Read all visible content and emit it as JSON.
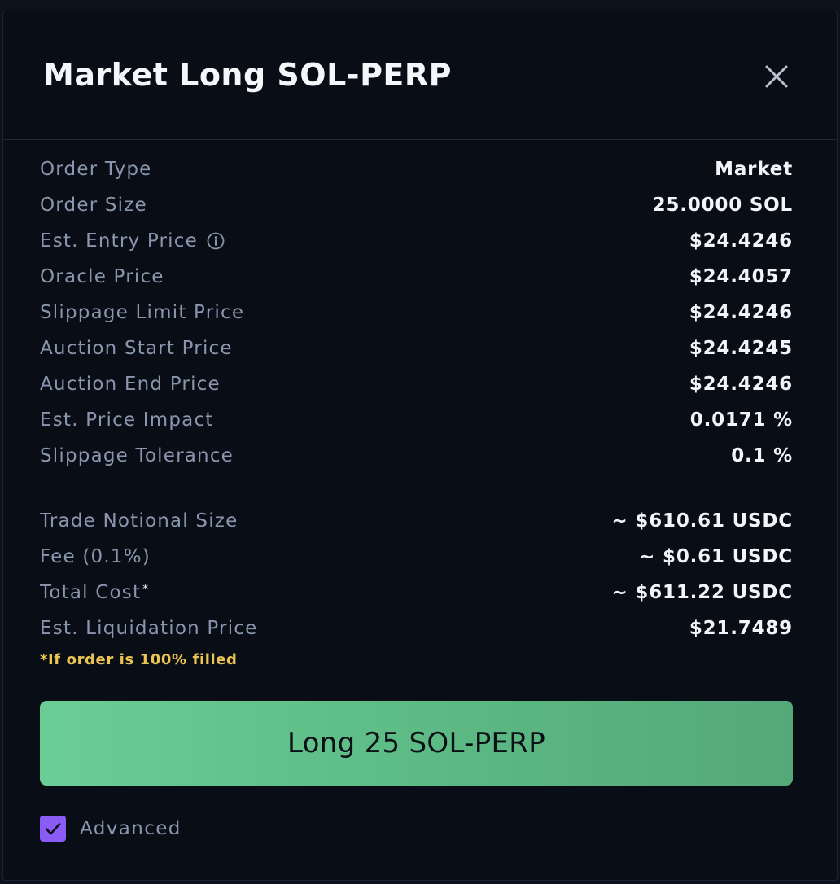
{
  "modal": {
    "title": "Market Long SOL-PERP",
    "close_icon": "close-icon"
  },
  "order_details": [
    {
      "label": "Order Type",
      "value": "Market"
    },
    {
      "label": "Order Size",
      "value": "25.0000 SOL"
    },
    {
      "label": "Est. Entry Price",
      "value": "$24.4246",
      "icon": "info-icon"
    },
    {
      "label": "Oracle Price",
      "value": "$24.4057"
    },
    {
      "label": "Slippage Limit Price",
      "value": "$24.4246"
    },
    {
      "label": "Auction Start Price",
      "value": "$24.4245"
    },
    {
      "label": "Auction End Price",
      "value": "$24.4246"
    },
    {
      "label": "Est. Price Impact",
      "value": "0.0171 %"
    },
    {
      "label": "Slippage Tolerance",
      "value": "0.1 %"
    }
  ],
  "cost_details": [
    {
      "label": "Trade Notional Size",
      "value": "~ $610.61 USDC"
    },
    {
      "label": "Fee (0.1%)",
      "value": "~ $0.61 USDC"
    },
    {
      "label": "Total Cost",
      "marker": "*",
      "value": "~ $611.22 USDC"
    },
    {
      "label": "Est. Liquidation Price",
      "value": "$21.7489"
    }
  ],
  "footnote": "*If order is 100% filled",
  "submit_button": {
    "label": "Long 25 SOL-PERP"
  },
  "advanced": {
    "label": "Advanced",
    "checked": true
  },
  "colors": {
    "background": "#080d16",
    "label_text": "#8996ad",
    "value_text": "#f2f4f8",
    "footnote": "#ecc452",
    "button_green": "#5cb983",
    "checkbox_purple": "#8a5cf5"
  }
}
